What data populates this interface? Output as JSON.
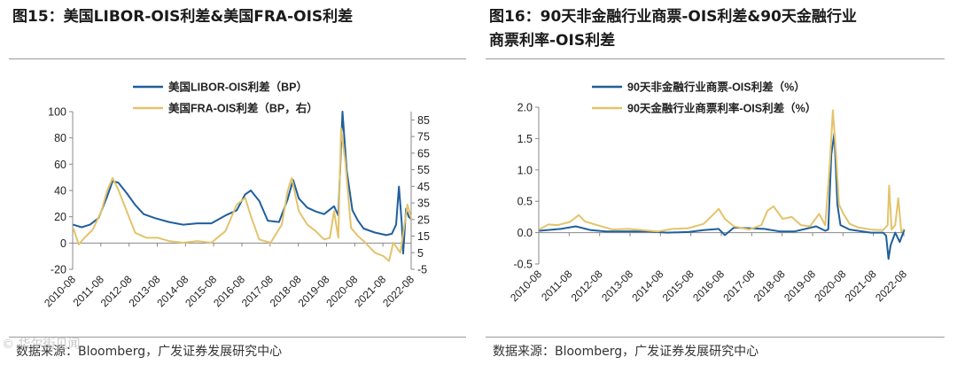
{
  "left_panel": {
    "title": "图15：美国LIBOR-OIS利差&美国FRA-OIS利差",
    "source": "数据来源：Bloomberg，广发证券发展研究中心"
  },
  "right_panel": {
    "title_line1": "图16：90天非金融行业商票-OIS利差&90天金融行业",
    "title_line2": "商票利率-OIS利差",
    "source": "数据来源：Bloomberg，广发证券发展研究中心"
  },
  "watermark": "© 华尔街见闻",
  "colors": {
    "series_blue": "#1f5f9e",
    "series_gold": "#e3c36b",
    "axis": "#888888"
  },
  "chart_data": [
    {
      "type": "line",
      "x": [
        "2010-08",
        "2011-08",
        "2012-08",
        "2013-08",
        "2014-08",
        "2015-08",
        "2016-08",
        "2017-08",
        "2018-08",
        "2019-08",
        "2020-08",
        "2021-08",
        "2022-08"
      ],
      "title": "",
      "ylabel": "",
      "ylabel_right": "",
      "ylim": [
        -20,
        100
      ],
      "yticks": [
        -20,
        0,
        20,
        40,
        60,
        80,
        100
      ],
      "ylim_right": [
        -5,
        90
      ],
      "yticks_right": [
        -5,
        5,
        15,
        25,
        35,
        45,
        55,
        65,
        75,
        85
      ],
      "legend_position": "top-center",
      "series": [
        {
          "name": "美国LIBOR-OIS利差（BP）",
          "axis": "left",
          "points": [
            [
              2010.6,
              14
            ],
            [
              2010.9,
              12
            ],
            [
              2011.2,
              14
            ],
            [
              2011.5,
              19
            ],
            [
              2011.8,
              35
            ],
            [
              2012.0,
              47
            ],
            [
              2012.2,
              46
            ],
            [
              2012.5,
              38
            ],
            [
              2012.8,
              29
            ],
            [
              2013.1,
              22
            ],
            [
              2013.5,
              19
            ],
            [
              2014.0,
              16
            ],
            [
              2014.5,
              14
            ],
            [
              2015.0,
              15
            ],
            [
              2015.5,
              15
            ],
            [
              2016.0,
              21
            ],
            [
              2016.4,
              25
            ],
            [
              2016.7,
              37
            ],
            [
              2016.9,
              40
            ],
            [
              2017.2,
              32
            ],
            [
              2017.5,
              17
            ],
            [
              2017.9,
              16
            ],
            [
              2018.2,
              33
            ],
            [
              2018.4,
              48
            ],
            [
              2018.6,
              34
            ],
            [
              2018.9,
              27
            ],
            [
              2019.2,
              24
            ],
            [
              2019.5,
              22
            ],
            [
              2019.85,
              28
            ],
            [
              2020.0,
              21
            ],
            [
              2020.15,
              100
            ],
            [
              2020.3,
              55
            ],
            [
              2020.5,
              25
            ],
            [
              2020.7,
              17
            ],
            [
              2020.9,
              11
            ],
            [
              2021.3,
              8
            ],
            [
              2021.7,
              6
            ],
            [
              2021.9,
              7
            ],
            [
              2022.05,
              14
            ],
            [
              2022.15,
              43
            ],
            [
              2022.25,
              15
            ],
            [
              2022.3,
              -8
            ],
            [
              2022.4,
              26
            ],
            [
              2022.5,
              20
            ],
            [
              2022.6,
              18
            ]
          ]
        },
        {
          "name": "美国FRA-OIS利差（BP，右）",
          "axis": "right",
          "points": [
            [
              2010.6,
              20
            ],
            [
              2010.8,
              10
            ],
            [
              2011.0,
              14
            ],
            [
              2011.3,
              19
            ],
            [
              2011.6,
              30
            ],
            [
              2011.8,
              42
            ],
            [
              2012.0,
              50
            ],
            [
              2012.2,
              43
            ],
            [
              2012.5,
              30
            ],
            [
              2012.8,
              17
            ],
            [
              2013.2,
              14
            ],
            [
              2013.6,
              14
            ],
            [
              2014.0,
              12
            ],
            [
              2014.5,
              11
            ],
            [
              2015.0,
              12
            ],
            [
              2015.5,
              11
            ],
            [
              2016.0,
              18
            ],
            [
              2016.4,
              34
            ],
            [
              2016.7,
              38
            ],
            [
              2016.9,
              27
            ],
            [
              2017.2,
              13
            ],
            [
              2017.6,
              11
            ],
            [
              2018.0,
              22
            ],
            [
              2018.2,
              42
            ],
            [
              2018.35,
              50
            ],
            [
              2018.6,
              30
            ],
            [
              2018.9,
              22
            ],
            [
              2019.2,
              18
            ],
            [
              2019.5,
              13
            ],
            [
              2019.7,
              14
            ],
            [
              2019.85,
              30
            ],
            [
              2020.0,
              14
            ],
            [
              2020.1,
              80
            ],
            [
              2020.25,
              60
            ],
            [
              2020.45,
              20
            ],
            [
              2020.7,
              15
            ],
            [
              2020.9,
              12
            ],
            [
              2021.3,
              5
            ],
            [
              2021.6,
              3
            ],
            [
              2021.8,
              0
            ],
            [
              2021.95,
              11
            ],
            [
              2022.2,
              5
            ],
            [
              2022.45,
              34
            ],
            [
              2022.6,
              25
            ]
          ]
        }
      ]
    },
    {
      "type": "line",
      "x": [
        "2010-08",
        "2011-08",
        "2012-08",
        "2013-08",
        "2014-08",
        "2015-08",
        "2016-08",
        "2017-08",
        "2018-08",
        "2019-08",
        "2020-08",
        "2021-08",
        "2022-08"
      ],
      "title": "",
      "ylabel": "",
      "ylim": [
        -0.5,
        2.0
      ],
      "yticks": [
        -0.5,
        0.0,
        0.5,
        1.0,
        1.5,
        2.0
      ],
      "legend_position": "top-center",
      "series": [
        {
          "name": "90天非金融行业商票-OIS利差（%）",
          "points": [
            [
              2010.6,
              0.03
            ],
            [
              2011.3,
              0.06
            ],
            [
              2011.8,
              0.1
            ],
            [
              2012.3,
              0.04
            ],
            [
              2012.8,
              0.02
            ],
            [
              2013.5,
              0.02
            ],
            [
              2014.2,
              0.02
            ],
            [
              2014.8,
              0.0
            ],
            [
              2015.5,
              0.01
            ],
            [
              2016.0,
              0.04
            ],
            [
              2016.5,
              0.06
            ],
            [
              2016.7,
              -0.04
            ],
            [
              2017.0,
              0.08
            ],
            [
              2017.5,
              0.07
            ],
            [
              2018.0,
              0.06
            ],
            [
              2018.5,
              0.02
            ],
            [
              2019.0,
              0.02
            ],
            [
              2019.7,
              0.1
            ],
            [
              2020.0,
              0.03
            ],
            [
              2020.1,
              0.05
            ],
            [
              2020.2,
              1.25
            ],
            [
              2020.3,
              1.58
            ],
            [
              2020.4,
              0.45
            ],
            [
              2020.5,
              0.12
            ],
            [
              2020.8,
              0.05
            ],
            [
              2021.5,
              0.0
            ],
            [
              2021.9,
              0.0
            ],
            [
              2022.0,
              -0.05
            ],
            [
              2022.08,
              -0.42
            ],
            [
              2022.15,
              -0.2
            ],
            [
              2022.3,
              0.0
            ],
            [
              2022.45,
              -0.15
            ],
            [
              2022.6,
              0.05
            ]
          ]
        },
        {
          "name": "90天金融行业商票利率-OIS利差（%）",
          "points": [
            [
              2010.6,
              0.05
            ],
            [
              2010.9,
              0.13
            ],
            [
              2011.2,
              0.12
            ],
            [
              2011.6,
              0.17
            ],
            [
              2011.9,
              0.28
            ],
            [
              2012.1,
              0.18
            ],
            [
              2012.5,
              0.12
            ],
            [
              2013.0,
              0.05
            ],
            [
              2013.5,
              0.06
            ],
            [
              2014.0,
              0.04
            ],
            [
              2014.5,
              0.02
            ],
            [
              2015.0,
              0.06
            ],
            [
              2015.5,
              0.07
            ],
            [
              2016.0,
              0.14
            ],
            [
              2016.3,
              0.28
            ],
            [
              2016.5,
              0.38
            ],
            [
              2016.7,
              0.22
            ],
            [
              2017.0,
              0.1
            ],
            [
              2017.5,
              0.05
            ],
            [
              2017.9,
              0.12
            ],
            [
              2018.1,
              0.35
            ],
            [
              2018.3,
              0.42
            ],
            [
              2018.6,
              0.22
            ],
            [
              2018.9,
              0.25
            ],
            [
              2019.2,
              0.12
            ],
            [
              2019.5,
              0.1
            ],
            [
              2019.8,
              0.3
            ],
            [
              2020.0,
              0.12
            ],
            [
              2020.15,
              1.1
            ],
            [
              2020.25,
              1.95
            ],
            [
              2020.35,
              1.3
            ],
            [
              2020.45,
              0.45
            ],
            [
              2020.6,
              0.3
            ],
            [
              2020.8,
              0.14
            ],
            [
              2021.1,
              0.08
            ],
            [
              2021.5,
              0.05
            ],
            [
              2021.9,
              0.04
            ],
            [
              2022.05,
              0.12
            ],
            [
              2022.1,
              0.75
            ],
            [
              2022.18,
              0.05
            ],
            [
              2022.3,
              0.12
            ],
            [
              2022.4,
              0.55
            ],
            [
              2022.5,
              0.02
            ],
            [
              2022.6,
              0.06
            ]
          ]
        }
      ]
    }
  ]
}
